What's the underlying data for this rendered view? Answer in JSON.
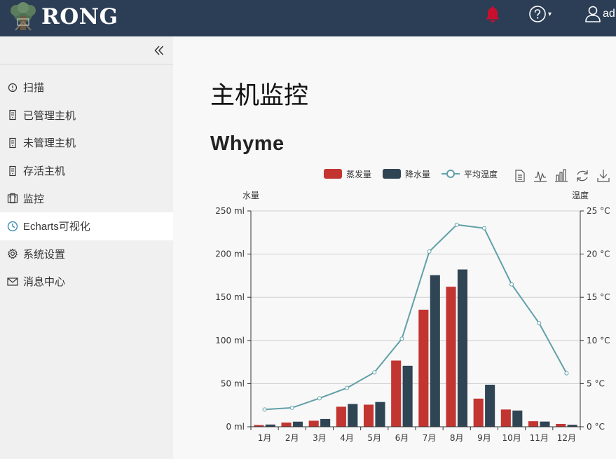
{
  "navbar": {
    "brand": "RONG",
    "user_label": "ad"
  },
  "sidebar": {
    "items": [
      {
        "label": "扫描",
        "icon": "info-circle-icon"
      },
      {
        "label": "已管理主机",
        "icon": "server-icon"
      },
      {
        "label": "未管理主机",
        "icon": "server-icon"
      },
      {
        "label": "存活主机",
        "icon": "server-icon"
      },
      {
        "label": "监控",
        "icon": "monitor-icon"
      },
      {
        "label": "Echarts可视化",
        "icon": "clock-icon"
      },
      {
        "label": "系统设置",
        "icon": "gear-icon"
      },
      {
        "label": "消息中心",
        "icon": "envelope-icon"
      }
    ],
    "active_index": 5
  },
  "main": {
    "title": "主机监控",
    "subtitle": "Whyme"
  },
  "colors": {
    "navbar": "#2c3e56",
    "evaporation": "#c23531",
    "precipitation": "#2f4554",
    "temperature": "#61a0a8",
    "bell": "#c8102e",
    "active_icon": "#2a7fb0"
  },
  "chart_data": {
    "type": "bar",
    "categories": [
      "1月",
      "2月",
      "3月",
      "4月",
      "5月",
      "6月",
      "7月",
      "8月",
      "9月",
      "10月",
      "11月",
      "12月"
    ],
    "series": [
      {
        "name": "蒸发量",
        "type": "bar",
        "axis": "left",
        "values": [
          2.0,
          4.9,
          7.0,
          23.2,
          25.6,
          76.7,
          135.6,
          162.2,
          32.6,
          20.0,
          6.4,
          3.3
        ]
      },
      {
        "name": "降水量",
        "type": "bar",
        "axis": "left",
        "values": [
          2.6,
          5.9,
          9.0,
          26.4,
          28.7,
          70.7,
          175.6,
          182.2,
          48.7,
          18.8,
          6.0,
          2.3
        ]
      },
      {
        "name": "平均温度",
        "type": "line",
        "axis": "right",
        "values": [
          2.0,
          2.2,
          3.3,
          4.5,
          6.3,
          10.2,
          20.3,
          23.4,
          23.0,
          16.5,
          12.0,
          6.2
        ]
      }
    ],
    "y_left": {
      "name": "水量",
      "min": 0,
      "max": 250,
      "ticks": [
        "0 ml",
        "50 ml",
        "100 ml",
        "150 ml",
        "200 ml",
        "250 ml"
      ]
    },
    "y_right": {
      "name": "温度",
      "min": 0,
      "max": 25,
      "ticks": [
        "0 °C",
        "5 °C",
        "10 °C",
        "15 °C",
        "20 °C",
        "25 °C"
      ]
    },
    "legend": [
      "蒸发量",
      "降水量",
      "平均温度"
    ],
    "legend_position": "top-center",
    "toolbox": [
      "data-view-icon",
      "line-chart-icon",
      "bar-chart-icon",
      "restore-icon",
      "save-image-icon"
    ],
    "grid": true
  }
}
